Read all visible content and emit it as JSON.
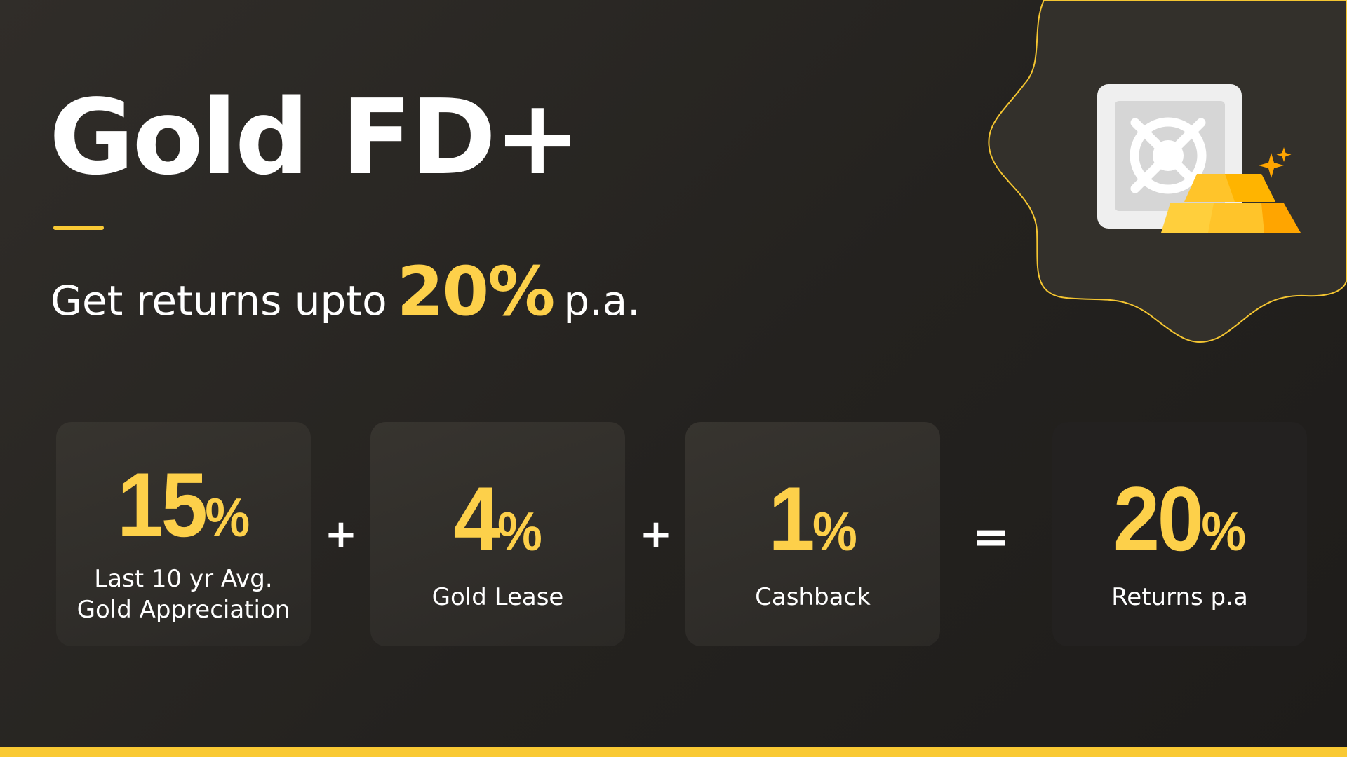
{
  "title": "Gold FD+",
  "subtitle": {
    "prefix": "Get returns upto",
    "highlight": "20%",
    "suffix": "p.a."
  },
  "cards": [
    {
      "value": "15",
      "unit": "%",
      "label_lines": [
        "Last 10 yr Avg.",
        "Gold Appreciation"
      ]
    },
    {
      "value": "4",
      "unit": "%",
      "label_lines": [
        "Gold Lease"
      ]
    },
    {
      "value": "1",
      "unit": "%",
      "label_lines": [
        "Cashback"
      ]
    },
    {
      "value": "20",
      "unit": "%",
      "label_lines": [
        "Returns p.a"
      ]
    }
  ],
  "operators": [
    "+",
    "+",
    "="
  ],
  "icons": {
    "illustration": "safe-with-gold-bars-icon"
  },
  "colors": {
    "accent": "#fdd04a",
    "background": "#262421",
    "card": "#33302c"
  }
}
